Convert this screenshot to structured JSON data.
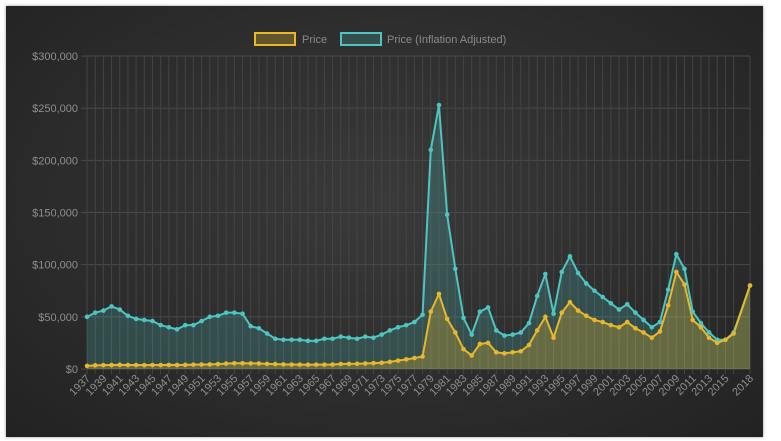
{
  "chart_data": {
    "type": "line",
    "title": "",
    "xlabel": "",
    "ylabel": "",
    "ylim": [
      0,
      300000
    ],
    "grid": true,
    "legend_position": "top",
    "y_ticks": [
      "$0",
      "$50,000",
      "$100,000",
      "$150,000",
      "$200,000",
      "$250,000",
      "$300,000"
    ],
    "x_tick_labels": [
      "1937",
      "1939",
      "1941",
      "1943",
      "1945",
      "1947",
      "1949",
      "1951",
      "1953",
      "1955",
      "1957",
      "1959",
      "1961",
      "1963",
      "1965",
      "1967",
      "1969",
      "1971",
      "1973",
      "1975",
      "1977",
      "1979",
      "1981",
      "1983",
      "1985",
      "1987",
      "1989",
      "1991",
      "1993",
      "1995",
      "1997",
      "1999",
      "2001",
      "2003",
      "2005",
      "2007",
      "2009",
      "2011",
      "2013",
      "2015",
      "2018"
    ],
    "x": [
      1937,
      1938,
      1939,
      1940,
      1941,
      1942,
      1943,
      1944,
      1945,
      1946,
      1947,
      1948,
      1949,
      1950,
      1951,
      1952,
      1953,
      1954,
      1955,
      1956,
      1957,
      1958,
      1959,
      1960,
      1961,
      1962,
      1963,
      1964,
      1965,
      1966,
      1967,
      1968,
      1969,
      1970,
      1971,
      1972,
      1973,
      1974,
      1975,
      1976,
      1977,
      1978,
      1979,
      1980,
      1981,
      1982,
      1983,
      1984,
      1985,
      1986,
      1987,
      1988,
      1989,
      1990,
      1991,
      1992,
      1993,
      1994,
      1995,
      1996,
      1997,
      1998,
      1999,
      2000,
      2001,
      2002,
      2003,
      2004,
      2005,
      2006,
      2007,
      2008,
      2009,
      2010,
      2011,
      2012,
      2013,
      2014,
      2015,
      2016,
      2018
    ],
    "series": [
      {
        "name": "Price",
        "color": "#e8b82a",
        "values": [
          3000,
          3500,
          3700,
          3800,
          4000,
          3800,
          3800,
          3700,
          3800,
          3800,
          3900,
          3800,
          4000,
          4200,
          4300,
          4400,
          4700,
          5200,
          5500,
          5500,
          5400,
          5300,
          4900,
          4700,
          4400,
          4300,
          4200,
          4100,
          4200,
          4200,
          4300,
          4800,
          4900,
          5000,
          5300,
          5600,
          6000,
          6800,
          8000,
          9200,
          10500,
          12000,
          55000,
          72000,
          48000,
          35000,
          19000,
          13000,
          24000,
          25000,
          16000,
          15000,
          16000,
          17000,
          23000,
          37000,
          50000,
          30000,
          54000,
          64000,
          56000,
          51000,
          47000,
          45000,
          42000,
          40000,
          45000,
          39000,
          35000,
          30000,
          36000,
          61000,
          93000,
          81000,
          47000,
          40000,
          30000,
          25000,
          28000,
          34000,
          80000
        ]
      },
      {
        "name": "Price (Inflation Adjusted)",
        "color": "#4ec5c1",
        "values": [
          50000,
          54000,
          56000,
          60000,
          57000,
          51000,
          48000,
          47000,
          46000,
          42000,
          40000,
          38000,
          42000,
          42000,
          46000,
          50000,
          51000,
          54000,
          54000,
          53000,
          41000,
          39000,
          34000,
          29000,
          28000,
          28000,
          28000,
          27000,
          27000,
          29000,
          29000,
          31000,
          30000,
          29000,
          31000,
          30000,
          33000,
          37000,
          40000,
          42000,
          45000,
          52000,
          210000,
          253000,
          148000,
          96000,
          49000,
          33000,
          55000,
          59000,
          37000,
          32000,
          33000,
          35000,
          44000,
          70000,
          91000,
          53000,
          93000,
          108000,
          92000,
          82000,
          75000,
          69000,
          63000,
          57000,
          62000,
          54000,
          47000,
          40000,
          45000,
          76000,
          110000,
          96000,
          55000,
          44000,
          35000,
          28000,
          28000,
          35000,
          80000
        ]
      }
    ]
  }
}
